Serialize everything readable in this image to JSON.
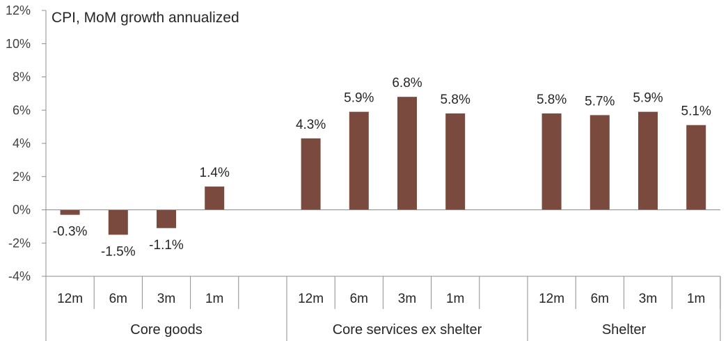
{
  "chart_data": {
    "type": "bar",
    "title": "CPI, MoM growth annualized",
    "xlabel": "",
    "ylabel": "",
    "ylim": [
      -4,
      12
    ],
    "yticks": [
      -4,
      -2,
      0,
      2,
      4,
      6,
      8,
      10,
      12
    ],
    "ytick_labels": [
      "-4%",
      "-2%",
      "0%",
      "2%",
      "4%",
      "6%",
      "8%",
      "10%",
      "12%"
    ],
    "grid": false,
    "legend": "none",
    "bar_color": "#7b4a3e",
    "groups": [
      {
        "name": "Core goods",
        "categories": [
          "12m",
          "6m",
          "3m",
          "1m"
        ],
        "values": [
          -0.3,
          -1.5,
          -1.1,
          1.4
        ],
        "labels": [
          "-0.3%",
          "-1.5%",
          "-1.1%",
          "1.4%"
        ]
      },
      {
        "name": "Core services ex shelter",
        "categories": [
          "12m",
          "6m",
          "3m",
          "1m"
        ],
        "values": [
          4.3,
          5.9,
          6.8,
          5.8
        ],
        "labels": [
          "4.3%",
          "5.9%",
          "6.8%",
          "5.8%"
        ]
      },
      {
        "name": "Shelter",
        "categories": [
          "12m",
          "6m",
          "3m",
          "1m"
        ],
        "values": [
          5.8,
          5.7,
          5.9,
          5.1
        ],
        "labels": [
          "5.8%",
          "5.7%",
          "5.9%",
          "5.1%"
        ]
      }
    ]
  }
}
